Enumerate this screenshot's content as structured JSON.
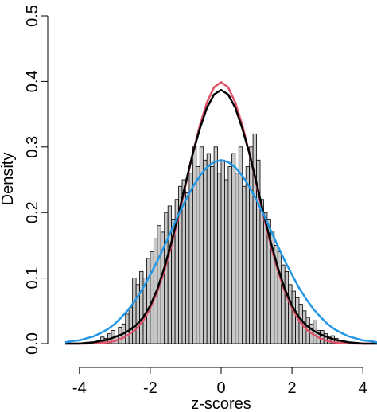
{
  "chart_data": {
    "type": "histogram",
    "xlabel": "z-scores",
    "ylabel": "Density",
    "bins": [
      -3.5,
      -3.4,
      -3.3,
      -3.2,
      -3.1,
      -3.0,
      -2.9,
      -2.8,
      -2.7,
      -2.6,
      -2.5,
      -2.4,
      -2.3,
      -2.2,
      -2.1,
      -2.0,
      -1.9,
      -1.8,
      -1.7,
      -1.6,
      -1.5,
      -1.4,
      -1.3,
      -1.2,
      -1.1,
      -1.0,
      -0.9,
      -0.8,
      -0.7,
      -0.6,
      -0.5,
      -0.4,
      -0.3,
      -0.2,
      -0.1,
      0.0,
      0.1,
      0.2,
      0.3,
      0.4,
      0.5,
      0.6,
      0.7,
      0.8,
      0.9,
      1.0,
      1.1,
      1.2,
      1.3,
      1.4,
      1.5,
      1.6,
      1.7,
      1.8,
      1.9,
      2.0,
      2.1,
      2.2,
      2.3,
      2.4,
      2.5,
      2.6,
      2.7,
      2.8,
      2.9,
      3.0,
      3.1,
      3.2,
      3.3,
      3.4,
      3.5
    ],
    "values": [
      0.005,
      0.01,
      0.008,
      0.015,
      0.02,
      0.012,
      0.025,
      0.03,
      0.045,
      0.055,
      0.1,
      0.09,
      0.11,
      0.1,
      0.13,
      0.14,
      0.16,
      0.18,
      0.17,
      0.2,
      0.21,
      0.19,
      0.22,
      0.24,
      0.25,
      0.23,
      0.26,
      0.3,
      0.27,
      0.3,
      0.28,
      0.29,
      0.27,
      0.3,
      0.26,
      0.28,
      0.25,
      0.27,
      0.29,
      0.26,
      0.3,
      0.24,
      0.27,
      0.3,
      0.32,
      0.28,
      0.22,
      0.2,
      0.19,
      0.17,
      0.15,
      0.14,
      0.12,
      0.11,
      0.09,
      0.08,
      0.07,
      0.06,
      0.05,
      0.04,
      0.03,
      0.035,
      0.02,
      0.02,
      0.015,
      0.01,
      0.012,
      0.008,
      0.005,
      0.004
    ],
    "color": "#c8c8c8",
    "curves": [
      {
        "color": "#df536b",
        "x": [
          -4.4,
          -4.2,
          -4.0,
          -3.8,
          -3.6,
          -3.4,
          -3.2,
          -3.0,
          -2.8,
          -2.6,
          -2.4,
          -2.2,
          -2.0,
          -1.8,
          -1.6,
          -1.4,
          -1.2,
          -1.0,
          -0.8,
          -0.6,
          -0.4,
          -0.2,
          0.0,
          0.2,
          0.4,
          0.6,
          0.8,
          1.0,
          1.2,
          1.4,
          1.6,
          1.8,
          2.0,
          2.2,
          2.4,
          2.6,
          2.8,
          3.0,
          3.2,
          3.4,
          3.6,
          3.8,
          4.0,
          4.2,
          4.4
        ],
        "values": [
          0,
          0,
          0,
          0,
          0.001,
          0.001,
          0.002,
          0.004,
          0.008,
          0.014,
          0.022,
          0.035,
          0.054,
          0.079,
          0.111,
          0.15,
          0.194,
          0.242,
          0.29,
          0.333,
          0.368,
          0.391,
          0.399,
          0.391,
          0.368,
          0.333,
          0.29,
          0.242,
          0.194,
          0.15,
          0.111,
          0.079,
          0.054,
          0.035,
          0.022,
          0.014,
          0.008,
          0.004,
          0.002,
          0.001,
          0.001,
          0,
          0,
          0,
          0
        ]
      },
      {
        "color": "#000000",
        "x": [
          -4.4,
          -4.2,
          -4.0,
          -3.8,
          -3.6,
          -3.4,
          -3.2,
          -3.0,
          -2.8,
          -2.6,
          -2.4,
          -2.2,
          -2.0,
          -1.8,
          -1.6,
          -1.4,
          -1.2,
          -1.0,
          -0.8,
          -0.6,
          -0.4,
          -0.2,
          0.0,
          0.2,
          0.4,
          0.6,
          0.8,
          1.0,
          1.2,
          1.4,
          1.6,
          1.8,
          2.0,
          2.2,
          2.4,
          2.6,
          2.8,
          3.0,
          3.2,
          3.4,
          3.6,
          3.8,
          4.0,
          4.2,
          4.4
        ],
        "values": [
          0,
          0,
          0,
          0.001,
          0.002,
          0.004,
          0.006,
          0.01,
          0.014,
          0.02,
          0.028,
          0.04,
          0.058,
          0.083,
          0.116,
          0.155,
          0.198,
          0.245,
          0.29,
          0.328,
          0.36,
          0.38,
          0.387,
          0.38,
          0.36,
          0.328,
          0.29,
          0.245,
          0.198,
          0.155,
          0.116,
          0.083,
          0.058,
          0.04,
          0.028,
          0.02,
          0.014,
          0.01,
          0.006,
          0.004,
          0.002,
          0.001,
          0,
          0,
          0
        ]
      },
      {
        "color": "#2297e6",
        "x": [
          -4.4,
          -4.2,
          -4.0,
          -3.8,
          -3.6,
          -3.4,
          -3.2,
          -3.0,
          -2.8,
          -2.6,
          -2.4,
          -2.2,
          -2.0,
          -1.8,
          -1.6,
          -1.4,
          -1.2,
          -1.0,
          -0.8,
          -0.6,
          -0.4,
          -0.2,
          0.0,
          0.2,
          0.4,
          0.6,
          0.8,
          1.0,
          1.2,
          1.4,
          1.6,
          1.8,
          2.0,
          2.2,
          2.4,
          2.6,
          2.8,
          3.0,
          3.2,
          3.4,
          3.6,
          3.8,
          4.0,
          4.2,
          4.4
        ],
        "values": [
          0.002,
          0.004,
          0.005,
          0.008,
          0.011,
          0.016,
          0.022,
          0.03,
          0.041,
          0.053,
          0.068,
          0.085,
          0.105,
          0.126,
          0.149,
          0.173,
          0.197,
          0.219,
          0.239,
          0.256,
          0.269,
          0.277,
          0.28,
          0.277,
          0.269,
          0.256,
          0.239,
          0.219,
          0.197,
          0.173,
          0.149,
          0.126,
          0.105,
          0.085,
          0.068,
          0.053,
          0.041,
          0.03,
          0.022,
          0.016,
          0.011,
          0.008,
          0.005,
          0.004,
          0.002
        ]
      }
    ],
    "xlim": [
      -4.4,
      4.4
    ],
    "ylim": [
      0,
      0.5
    ],
    "xticks": [
      -4,
      -2,
      0,
      2,
      4
    ],
    "yticks": [
      {
        "value": 0,
        "label": "0.0"
      },
      0.1,
      0.2,
      0.3,
      0.4,
      0.5
    ]
  }
}
